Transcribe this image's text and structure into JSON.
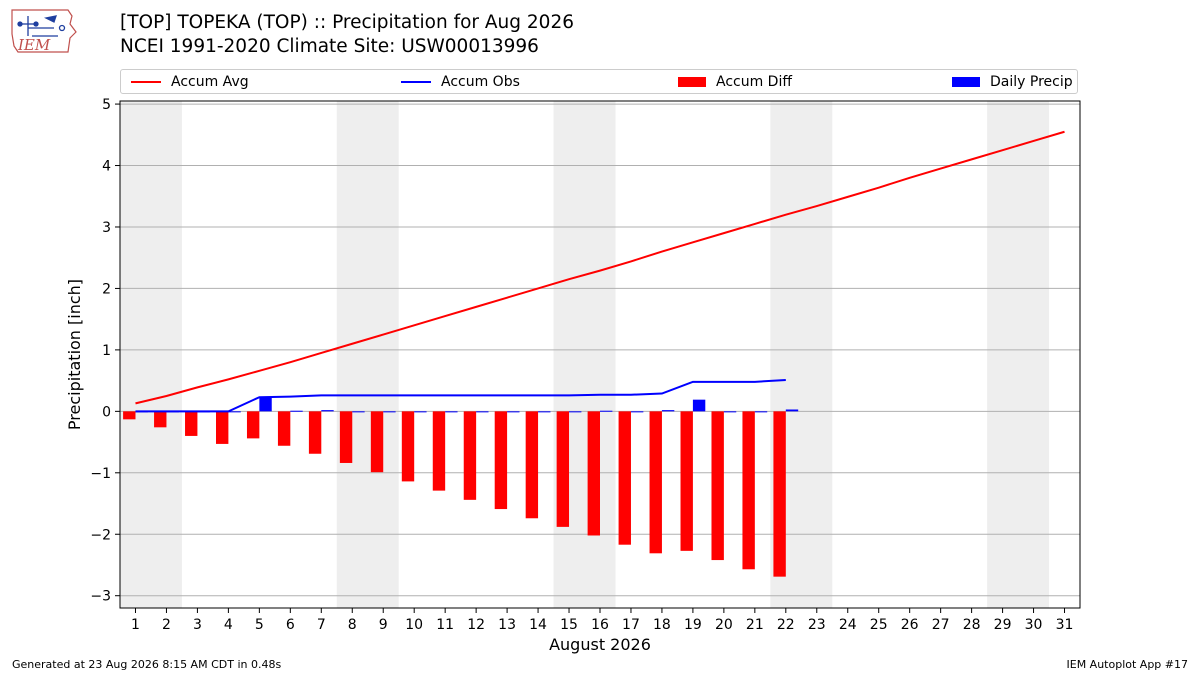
{
  "header": {
    "title_line1": "[TOP] TOPEKA (TOP) :: Precipitation for Aug 2026",
    "title_line2": "NCEI 1991-2020 Climate Site: USW00013996",
    "logo_text": "IEM"
  },
  "footer": {
    "left": "Generated at 23 Aug 2026 8:15 AM CDT in 0.48s",
    "right": "IEM Autoplot App #17"
  },
  "colors": {
    "accum_avg": "#ff0000",
    "accum_obs": "#0000ff",
    "accum_diff": "#ff0000",
    "daily_precip": "#0000ff",
    "weekend_shade": "#eeeeee",
    "grid": "#b0b0b0"
  },
  "chart_data": {
    "type": "bar",
    "xlabel": "August 2026",
    "ylabel": "Precipitation [inch]",
    "ylim": [
      -3.2,
      5.05
    ],
    "xlim": [
      0.5,
      31.5
    ],
    "yticks": [
      5,
      4,
      3,
      2,
      1,
      0,
      -1,
      -2,
      -3
    ],
    "ytick_labels": [
      "5",
      "4",
      "3",
      "2",
      "1",
      "0",
      "−1",
      "−2",
      "−3"
    ],
    "days": [
      1,
      2,
      3,
      4,
      5,
      6,
      7,
      8,
      9,
      10,
      11,
      12,
      13,
      14,
      15,
      16,
      17,
      18,
      19,
      20,
      21,
      22,
      23,
      24,
      25,
      26,
      27,
      28,
      29,
      30,
      31
    ],
    "weekend_spans": [
      [
        0.5,
        2.5
      ],
      [
        7.5,
        9.5
      ],
      [
        14.5,
        16.5
      ],
      [
        21.5,
        23.5
      ],
      [
        28.5,
        30.5
      ]
    ],
    "grid": true,
    "legend_position": "top",
    "legend": [
      "Accum Avg",
      "Accum Obs",
      "Accum Diff",
      "Daily Precip"
    ],
    "series": [
      {
        "name": "Accum Avg",
        "kind": "line",
        "x": [
          1,
          2,
          3,
          4,
          5,
          6,
          7,
          8,
          9,
          10,
          11,
          12,
          13,
          14,
          15,
          16,
          17,
          18,
          19,
          20,
          21,
          22,
          23,
          24,
          25,
          26,
          27,
          28,
          29,
          30,
          31
        ],
        "values": [
          0.13,
          0.25,
          0.39,
          0.52,
          0.66,
          0.8,
          0.95,
          1.1,
          1.25,
          1.4,
          1.55,
          1.7,
          1.85,
          2.0,
          2.15,
          2.29,
          2.44,
          2.6,
          2.75,
          2.9,
          3.05,
          3.2,
          3.34,
          3.49,
          3.64,
          3.8,
          3.95,
          4.1,
          4.25,
          4.4,
          4.55
        ]
      },
      {
        "name": "Accum Obs",
        "kind": "line",
        "x": [
          1,
          2,
          3,
          4,
          5,
          6,
          7,
          8,
          9,
          10,
          11,
          12,
          13,
          14,
          15,
          16,
          17,
          18,
          19,
          20,
          21,
          22
        ],
        "values": [
          0.0,
          0.0,
          0.0,
          0.0,
          0.23,
          0.24,
          0.26,
          0.26,
          0.26,
          0.26,
          0.26,
          0.26,
          0.26,
          0.26,
          0.26,
          0.27,
          0.27,
          0.29,
          0.48,
          0.48,
          0.48,
          0.51
        ]
      },
      {
        "name": "Accum Diff",
        "kind": "bar",
        "x": [
          1,
          2,
          3,
          4,
          5,
          6,
          7,
          8,
          9,
          10,
          11,
          12,
          13,
          14,
          15,
          16,
          17,
          18,
          19,
          20,
          21,
          22
        ],
        "values": [
          -0.13,
          -0.26,
          -0.4,
          -0.53,
          -0.44,
          -0.56,
          -0.69,
          -0.84,
          -0.99,
          -1.14,
          -1.29,
          -1.44,
          -1.59,
          -1.74,
          -1.88,
          -2.02,
          -2.17,
          -2.31,
          -2.27,
          -2.42,
          -2.57,
          -2.69
        ]
      },
      {
        "name": "Daily Precip",
        "kind": "bar",
        "x": [
          1,
          2,
          3,
          4,
          5,
          6,
          7,
          8,
          9,
          10,
          11,
          12,
          13,
          14,
          15,
          16,
          17,
          18,
          19,
          20,
          21,
          22
        ],
        "values": [
          0,
          0,
          0,
          0,
          0.23,
          0.01,
          0.02,
          0,
          0,
          0,
          0,
          0,
          0,
          0,
          0,
          0.01,
          0,
          0.02,
          0.19,
          0,
          0,
          0.03
        ]
      }
    ]
  }
}
